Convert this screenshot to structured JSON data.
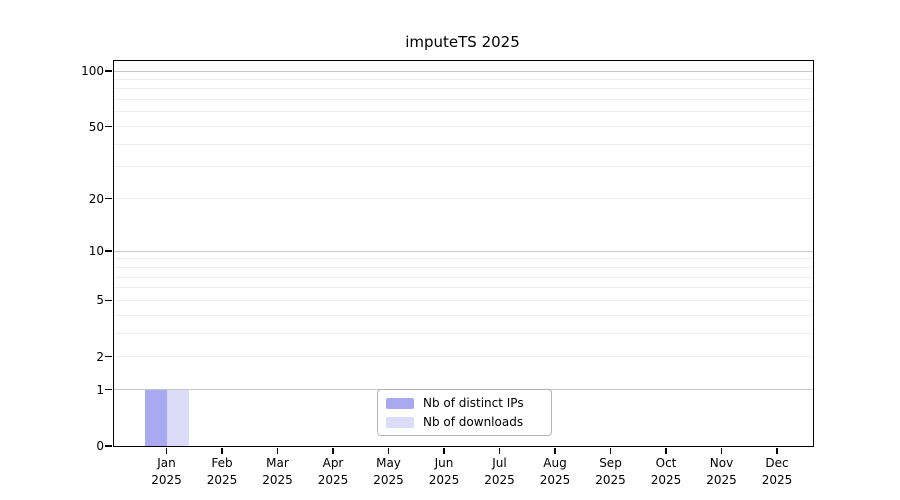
{
  "chart_data": {
    "type": "bar",
    "title": "imputeTS 2025",
    "scale": "log1p",
    "x": {
      "categories": [
        "Jan",
        "Feb",
        "Mar",
        "Apr",
        "May",
        "Jun",
        "Jul",
        "Aug",
        "Sep",
        "Oct",
        "Nov",
        "Dec"
      ],
      "year": "2025"
    },
    "series": [
      {
        "name": "Nb of distinct IPs",
        "color": "#a9a9f1",
        "values": [
          1,
          0,
          0,
          0,
          0,
          0,
          0,
          0,
          0,
          0,
          0,
          0
        ]
      },
      {
        "name": "Nb of downloads",
        "color": "#dcdcf8",
        "values": [
          1,
          0,
          0,
          0,
          0,
          0,
          0,
          0,
          0,
          0,
          0,
          0
        ]
      }
    ],
    "y_axis": {
      "tick_values": [
        100,
        50,
        20,
        10,
        5,
        2,
        1,
        0
      ],
      "major_gridlines": [
        1,
        10,
        100
      ],
      "minor_gridlines": [
        2,
        3,
        4,
        5,
        6,
        7,
        8,
        9,
        20,
        30,
        40,
        50,
        60,
        70,
        80,
        90
      ],
      "range": [
        0,
        100
      ],
      "grid": "on"
    },
    "legend": {
      "position": "bottom-center"
    },
    "colors": {
      "axis": "#000000",
      "major_grid": "#c8c8c8",
      "minor_grid": "#ededed",
      "background": "#ffffff",
      "legend_border": "#b3b3b3"
    }
  }
}
